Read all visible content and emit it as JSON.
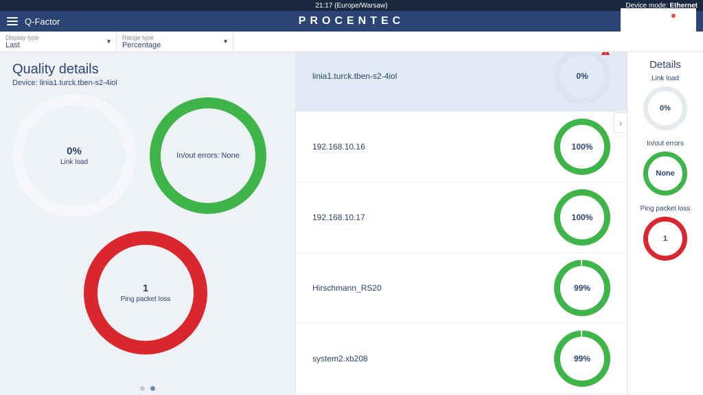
{
  "colors": {
    "navy": "#2b4473",
    "darknavy": "#19273f",
    "green": "#3fb449",
    "red": "#d9272e",
    "white": "#ffffff",
    "gauge_track": "#eceff3",
    "sel_bg": "#e2eaf5",
    "panel_bg": "#eef1f5"
  },
  "topstrip": {
    "clock": "21:17 (Europe/Warsaw)",
    "mode_label": "Device mode:",
    "mode_value": "Ethernet"
  },
  "header": {
    "title": "Q-Factor",
    "brand": "PROCENTEC"
  },
  "filters": {
    "display_type": {
      "label": "Display type",
      "value": "Last"
    },
    "range_type": {
      "label": "Range type",
      "value": "Percentage"
    }
  },
  "quality": {
    "heading": "Quality details",
    "device_prefix": "Device: ",
    "device": "linia1.turck.tben-s2-4iol",
    "link_load": {
      "value": "0%",
      "label": "Link load",
      "percent": 0,
      "ring_color": "#ffffff",
      "track_color": "#f5f7fa",
      "size": 180,
      "stroke": 16
    },
    "errors": {
      "value": "In/out errors: None",
      "label": "",
      "percent": 100,
      "ring_color": "#3fb449",
      "track_color": "#eceff3",
      "size": 170,
      "stroke": 16
    },
    "ping": {
      "value": "1",
      "label": "Ping packet loss",
      "percent": 100,
      "ring_color": "#d9272e",
      "track_color": "#eceff3",
      "size": 180,
      "stroke": 20
    },
    "pager": {
      "count": 2,
      "active": 1
    }
  },
  "list": [
    {
      "name": "linia1.turck.tben-s2-4iol",
      "value": "0%",
      "percent": 0,
      "color": "#ffffff",
      "track": "#dde4ef",
      "selected": true,
      "warn": true
    },
    {
      "name": "192.168.10.16",
      "value": "100%",
      "percent": 100,
      "color": "#3fb449",
      "track": "#eceff3",
      "selected": false,
      "warn": false
    },
    {
      "name": "192.168.10.17",
      "value": "100%",
      "percent": 100,
      "color": "#3fb449",
      "track": "#eceff3",
      "selected": false,
      "warn": false
    },
    {
      "name": "Hirschmann_RS20",
      "value": "99%",
      "percent": 99,
      "color": "#3fb449",
      "track": "#eceff3",
      "selected": false,
      "warn": false
    },
    {
      "name": "system2.xb208",
      "value": "99%",
      "percent": 99,
      "color": "#3fb449",
      "track": "#eceff3",
      "selected": false,
      "warn": false
    }
  ],
  "details": {
    "heading": "Details",
    "items": [
      {
        "label": "Link load",
        "value": "0%",
        "percent": 0,
        "color": "#ffffff",
        "track": "#e6e9ee"
      },
      {
        "label": "In/out errors",
        "value": "None",
        "percent": 100,
        "color": "#3fb449",
        "track": "#eceff3"
      },
      {
        "label": "Ping packet loss",
        "value": "1",
        "percent": 100,
        "color": "#d9272e",
        "track": "#eceff3"
      }
    ]
  }
}
